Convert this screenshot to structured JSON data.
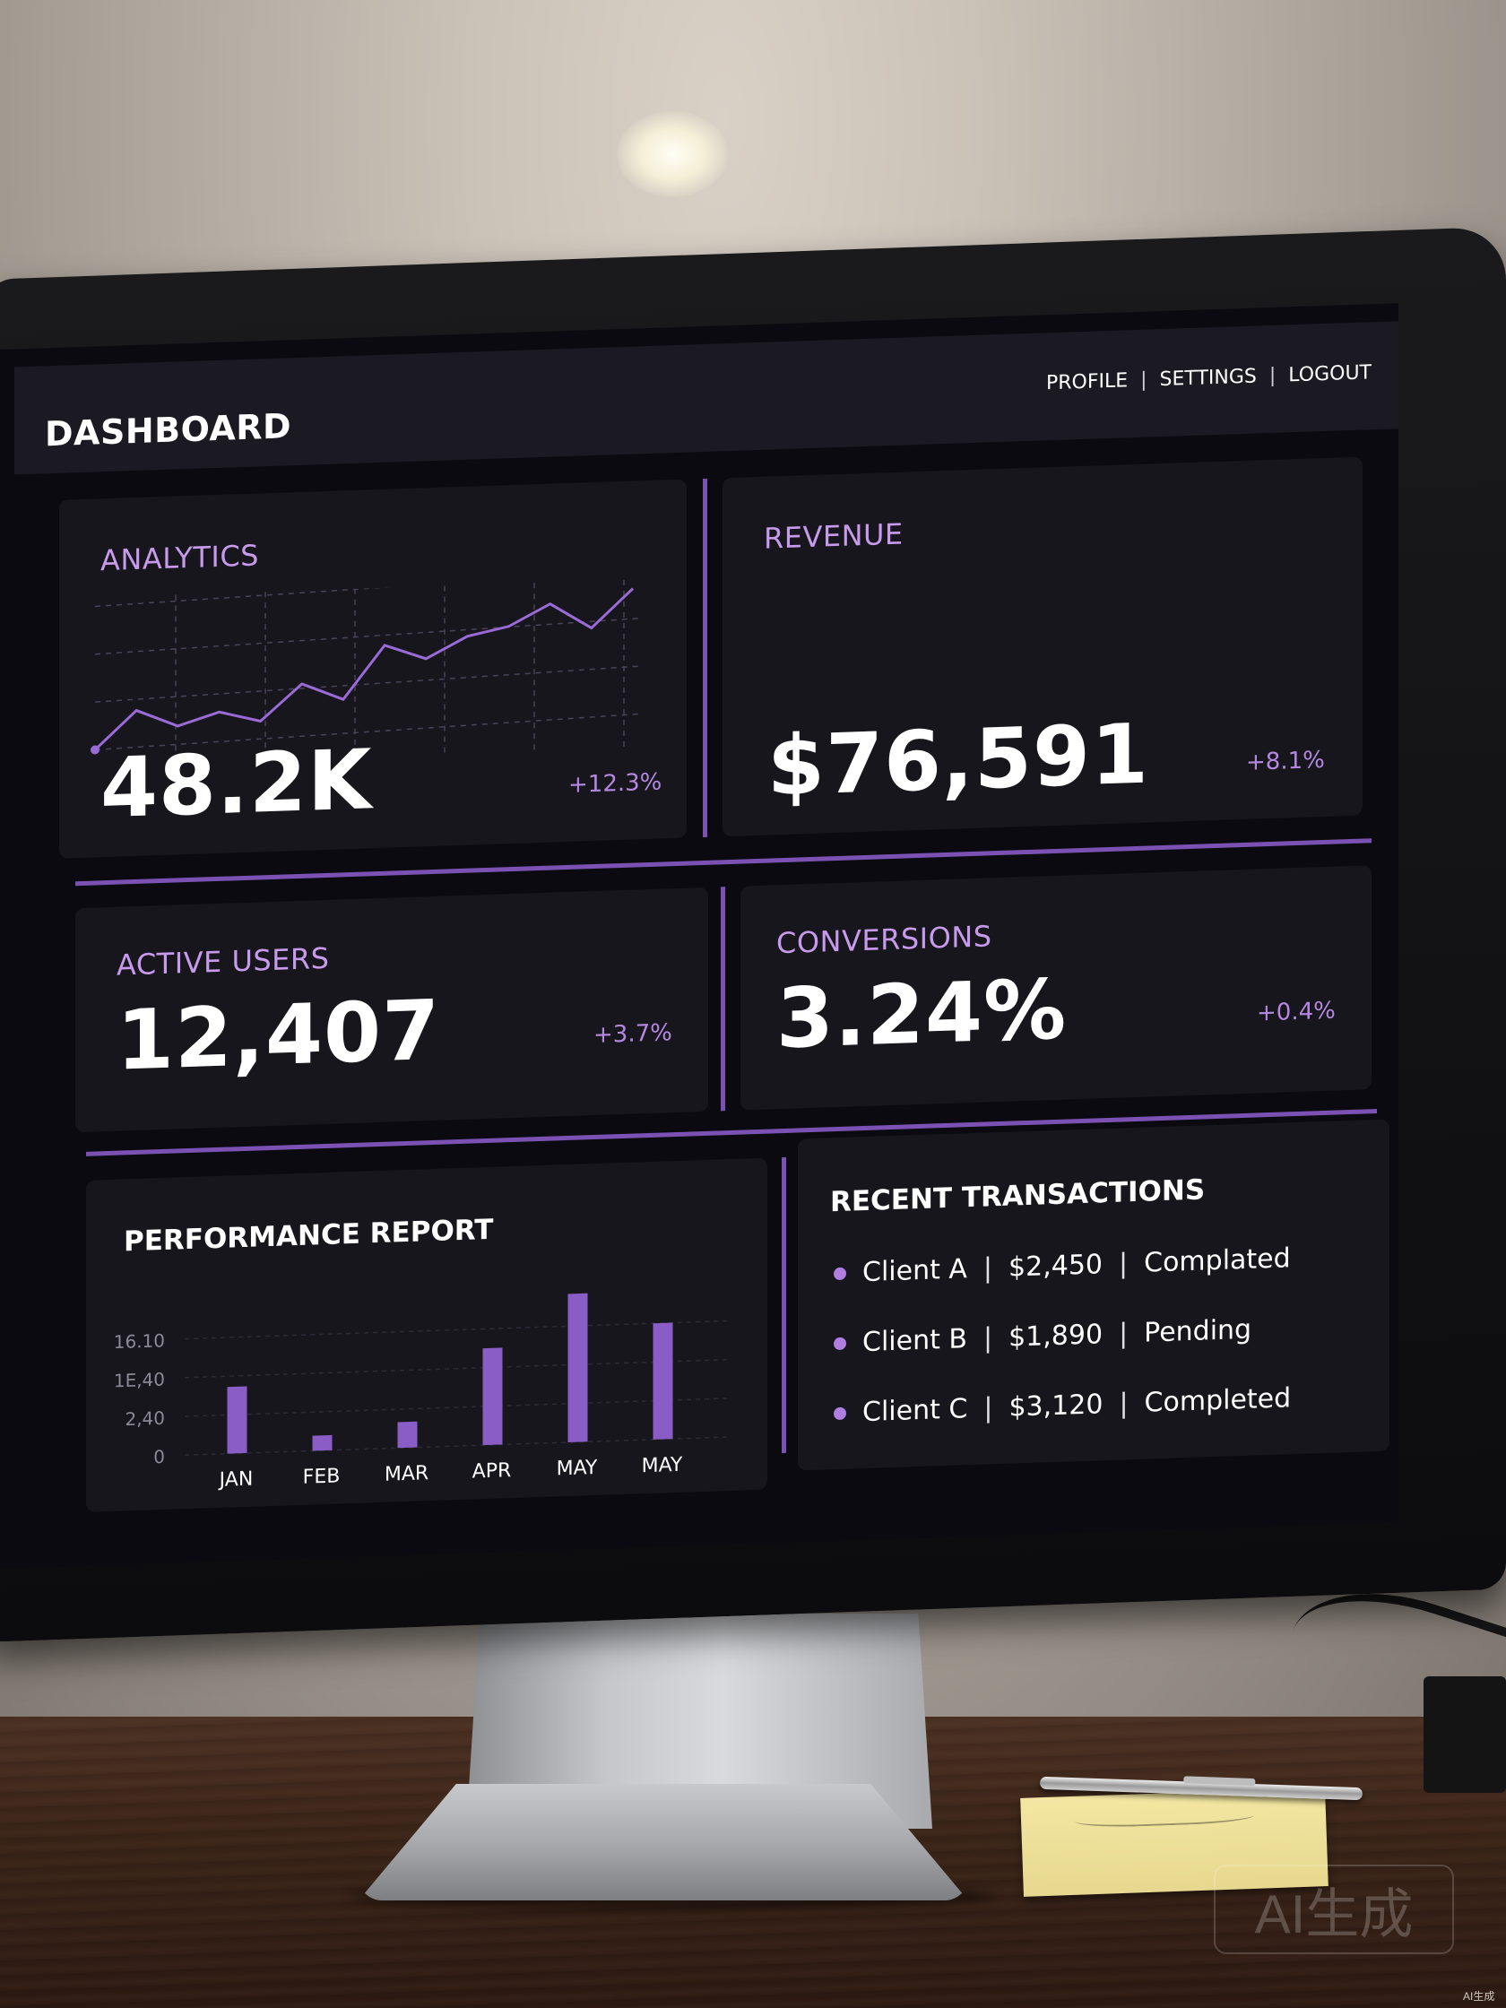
{
  "header": {
    "title": "DASHBOARD",
    "nav": [
      "PROFILE",
      "SETTINGS",
      "LOGOUT"
    ],
    "separator": "|"
  },
  "analytics": {
    "label": "ANALYTICS",
    "value": "48.2K",
    "delta": "+12.3%",
    "sparkline": [
      10,
      28,
      20,
      26,
      21,
      38,
      30,
      55,
      48,
      58,
      62,
      72,
      60,
      78
    ]
  },
  "revenue": {
    "label": "REVENUE",
    "value": "$76,591",
    "delta": "+8.1%"
  },
  "active_users": {
    "label": "ACTIVE USERS",
    "value": "12,407",
    "delta": "+3.7%"
  },
  "conversions": {
    "label": "CONVERSIONS",
    "value": "3.24%",
    "delta": "+0.4%"
  },
  "performance": {
    "title": "PERFORMANCE REPORT"
  },
  "chart_data": {
    "type": "bar",
    "title": "PERFORMANCE REPORT",
    "categories": [
      "JAN",
      "FEB",
      "MAR",
      "APR",
      "MAY",
      "MAY"
    ],
    "values": [
      0.62,
      0.14,
      0.24,
      0.9,
      1.38,
      1.08
    ],
    "y_tick_labels": [
      "0",
      "2,40",
      "1E,40",
      "16.10"
    ],
    "color": "#8a5cc6"
  },
  "transactions": {
    "title": "RECENT TRANSACTIONS",
    "rows": [
      {
        "client": "Client A",
        "amount": "$2,450",
        "status": "Complated"
      },
      {
        "client": "Client B",
        "amount": "$1,890",
        "status": "Pending"
      },
      {
        "client": "Client C",
        "amount": "$3,120",
        "status": "Completed"
      }
    ]
  },
  "watermark": {
    "text": "AI生成",
    "corner": "AI生成"
  },
  "colors": {
    "accent": "#7b52b3",
    "label_purple": "#c79aec",
    "card_bg": "#17161d",
    "screen_bg": "#0b0a10"
  }
}
